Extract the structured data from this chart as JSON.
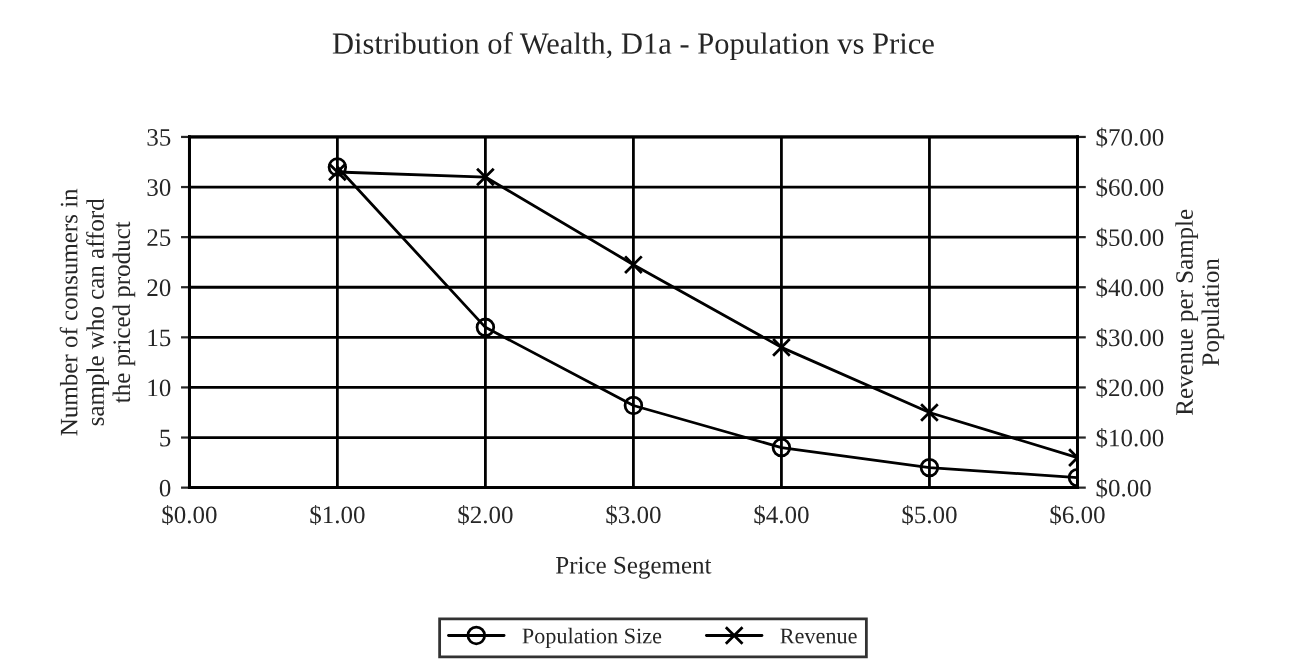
{
  "chart_data": {
    "type": "line",
    "title": "Distribution of Wealth, D1a - Population vs Price",
    "xlabel": "Price Segement",
    "ylabel": "Number of consumers in\nsample who can afford\nthe priced product",
    "y2label": "Revenue per Sample\nPopulation",
    "x": [
      1,
      2,
      3,
      4,
      5,
      6
    ],
    "series": [
      {
        "name": "Population Size",
        "color": "#000000",
        "marker": "circle",
        "values": [
          32,
          16,
          8.2,
          4,
          2,
          1
        ]
      },
      {
        "name": "Revenue",
        "color": "#000000",
        "marker": "cross",
        "axis": "y2",
        "values": [
          63,
          62,
          44.5,
          28,
          15,
          6
        ]
      }
    ],
    "xlim": [
      0,
      6
    ],
    "xticks": [
      {
        "value": 0,
        "label": "$0.00"
      },
      {
        "value": 1,
        "label": "$1.00"
      },
      {
        "value": 2,
        "label": "$2.00"
      },
      {
        "value": 3,
        "label": "$3.00"
      },
      {
        "value": 4,
        "label": "$4.00"
      },
      {
        "value": 5,
        "label": "$5.00"
      },
      {
        "value": 6,
        "label": "$6.00"
      }
    ],
    "ylim": [
      0,
      35
    ],
    "yticks": [
      0,
      5,
      10,
      15,
      20,
      25,
      30,
      35
    ],
    "y2lim": [
      0,
      70
    ],
    "y2ticks": [
      {
        "value": 0,
        "label": "$0.00"
      },
      {
        "value": 10,
        "label": "$10.00"
      },
      {
        "value": 20,
        "label": "$20.00"
      },
      {
        "value": 30,
        "label": "$30.00"
      },
      {
        "value": 40,
        "label": "$40.00"
      },
      {
        "value": 50,
        "label": "$50.00"
      },
      {
        "value": 60,
        "label": "$60.00"
      },
      {
        "value": 70,
        "label": "$70.00"
      }
    ],
    "grid": true,
    "legend": "bottom",
    "line_style": "solid"
  }
}
